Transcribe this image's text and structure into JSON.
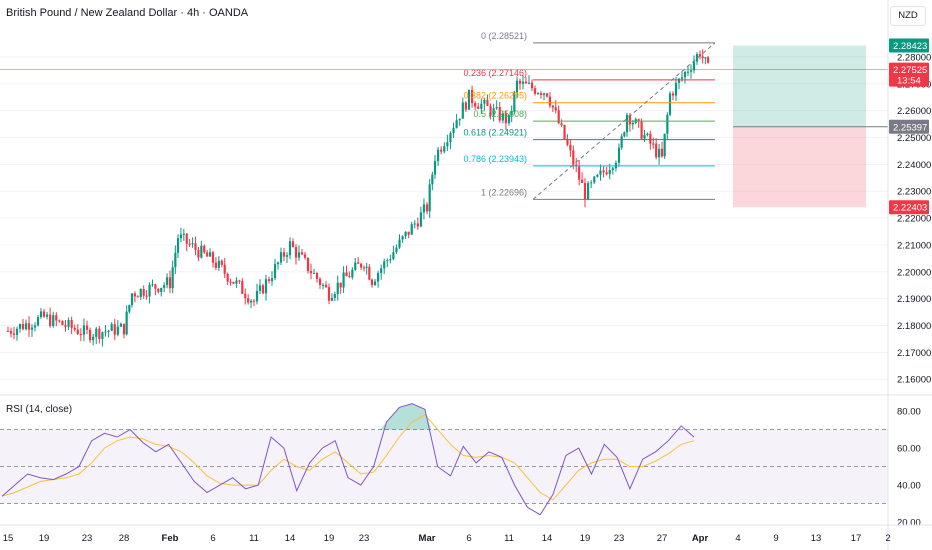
{
  "header": {
    "title": "British Pound / New Zealand Dollar · 4h · OANDA",
    "currency": "NZD"
  },
  "colors": {
    "up": "#089981",
    "down": "#f23645",
    "rsi": "#7e57c2",
    "rsi_ma": "#f7c23a"
  },
  "chart_data": [
    {
      "type": "candlestick",
      "title": "British Pound / New Zealand Dollar · 4h · OANDA",
      "currency": "NZD",
      "y_ticks": [
        "2.28000",
        "2.27000",
        "2.26000",
        "2.25000",
        "2.24000",
        "2.23000",
        "2.22000",
        "2.21000",
        "2.20000",
        "2.19000",
        "2.18000",
        "2.17000",
        "2.16000"
      ],
      "ylim": [
        2.1545,
        2.2915
      ],
      "x_ticks": [
        "15",
        "19",
        "23",
        "28",
        "Feb",
        "6",
        "11",
        "14",
        "19",
        "23",
        "Mar",
        "6",
        "11",
        "14",
        "19",
        "23",
        "27",
        "Apr",
        "4",
        "9",
        "13",
        "17",
        "2"
      ],
      "price_path": [
        {
          "t": "15",
          "v": 2.178
        },
        {
          "t": "19",
          "v": 2.183
        },
        {
          "t": "23",
          "v": 2.177
        },
        {
          "t": "28",
          "v": 2.179
        },
        {
          "t": "28",
          "v": 2.192
        },
        {
          "t": "Feb",
          "v": 2.196
        },
        {
          "t": "Feb",
          "v": 2.213
        },
        {
          "t": "6",
          "v": 2.204
        },
        {
          "t": "11",
          "v": 2.189
        },
        {
          "t": "14",
          "v": 2.21
        },
        {
          "t": "19",
          "v": 2.192
        },
        {
          "t": "23",
          "v": 2.204
        },
        {
          "t": "23",
          "v": 2.197
        },
        {
          "t": "Mar",
          "v": 2.224
        },
        {
          "t": "Mar",
          "v": 2.243
        },
        {
          "t": "6",
          "v": 2.265
        },
        {
          "t": "11",
          "v": 2.256
        },
        {
          "t": "11",
          "v": 2.27
        },
        {
          "t": "14",
          "v": 2.267
        },
        {
          "t": "19",
          "v": 2.229
        },
        {
          "t": "23",
          "v": 2.244
        },
        {
          "t": "23",
          "v": 2.259
        },
        {
          "t": "27",
          "v": 2.242
        },
        {
          "t": "27",
          "v": 2.266
        },
        {
          "t": "Apr",
          "v": 2.282
        },
        {
          "t": "Apr",
          "v": 2.2752
        }
      ],
      "fibonacci": [
        {
          "level": "0",
          "price": "2.28521",
          "color": "#787b86"
        },
        {
          "level": "0.236",
          "price": "2.27146",
          "color": "#f23645"
        },
        {
          "level": "0.382",
          "price": "2.26295",
          "color": "#ff9800"
        },
        {
          "level": "0.5",
          "price": "2.25608",
          "color": "#4caf50"
        },
        {
          "level": "0.618",
          "price": "2.24921",
          "color": "#089981"
        },
        {
          "level": "0.786",
          "price": "2.23943",
          "color": "#00bcd4"
        },
        {
          "level": "1",
          "price": "2.22696",
          "color": "#787b86"
        }
      ],
      "position": {
        "target": "2.28423",
        "entry": "2.25397",
        "stop": "2.22403"
      },
      "last_price": {
        "value": "2.27525",
        "countdown": "13:54"
      }
    },
    {
      "type": "line",
      "title": "RSI (14, close)",
      "y_ticks": [
        "80.00",
        "60.00",
        "40.00",
        "20.00"
      ],
      "ylim": [
        19,
        86
      ],
      "bands": {
        "upper": 70,
        "middle": 50,
        "lower": 30
      },
      "series": [
        {
          "name": "RSI",
          "values": [
            34,
            40,
            46,
            44,
            43,
            46,
            50,
            64,
            68,
            66,
            70,
            63,
            58,
            62,
            52,
            42,
            36,
            40,
            44,
            38,
            40,
            66,
            60,
            37,
            52,
            60,
            64,
            44,
            40,
            50,
            74,
            82,
            84,
            81,
            50,
            45,
            61,
            52,
            58,
            55,
            40,
            28,
            24,
            35,
            56,
            60,
            46,
            62,
            55,
            38,
            54,
            58,
            64,
            72,
            66
          ]
        },
        {
          "name": "RSI MA",
          "values": [
            34,
            36,
            39,
            42,
            43,
            44,
            46,
            52,
            60,
            64,
            66,
            65,
            62,
            61,
            58,
            52,
            45,
            41,
            40,
            40,
            40,
            48,
            54,
            50,
            48,
            54,
            58,
            52,
            46,
            47,
            56,
            66,
            74,
            78,
            70,
            62,
            56,
            55,
            56,
            55,
            52,
            44,
            36,
            32,
            40,
            48,
            52,
            54,
            54,
            50,
            50,
            53,
            57,
            62,
            64
          ]
        }
      ]
    }
  ]
}
